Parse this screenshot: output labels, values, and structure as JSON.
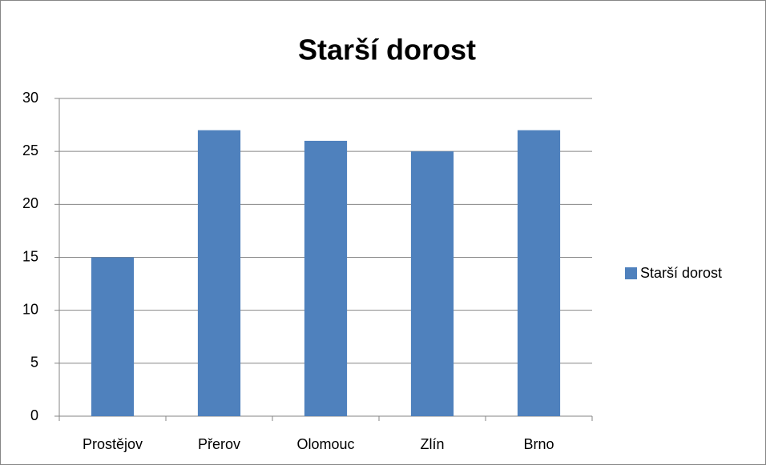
{
  "chart_data": {
    "type": "bar",
    "title": "Starší dorost",
    "categories": [
      "Prostějov",
      "Přerov",
      "Olomouc",
      "Zlín",
      "Brno"
    ],
    "series": [
      {
        "name": "Starší dorost",
        "color": "#4f81bd",
        "values": [
          15,
          27,
          26,
          25,
          27
        ]
      }
    ],
    "ylim": [
      0,
      30
    ],
    "yticks": [
      0,
      5,
      10,
      15,
      20,
      25,
      30
    ],
    "grid": true,
    "legend": "right"
  }
}
